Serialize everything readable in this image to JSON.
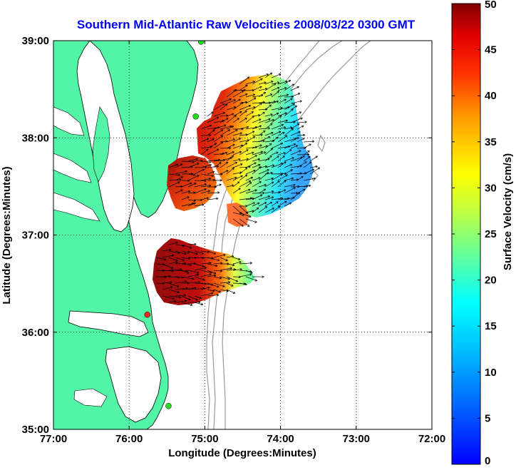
{
  "title": "Southern Mid-Atlantic Raw Velocities 2008/03/22 0300 GMT",
  "x_axis": {
    "label": "Longitude (Degrees:Minutes)",
    "ticks": [
      "77:00",
      "76:00",
      "75:00",
      "74:00",
      "73:00",
      "72:00"
    ]
  },
  "y_axis": {
    "label": "Latitude (Degrees:Minutes)",
    "ticks": [
      "39:00",
      "38:00",
      "37:00",
      "36:00",
      "35:00"
    ]
  },
  "colorbar": {
    "label": "Surface Velocity (cm/s)",
    "min": 0,
    "max": 50,
    "ticks": [
      "50",
      "45",
      "40",
      "35",
      "30",
      "25",
      "20",
      "15",
      "10",
      "5",
      "0"
    ]
  },
  "colors": {
    "land": "#52f5a6",
    "title": "#0000ff",
    "isobath": "#999999",
    "station_active": "#22dd22",
    "station_alert": "#ff2222"
  },
  "map": {
    "lon_range": [
      -77,
      -72
    ],
    "lat_range": [
      35,
      39
    ],
    "grid": "dotted",
    "stations": [
      {
        "lon": -75.05,
        "lat": 38.99,
        "status": "active"
      },
      {
        "lon": -75.12,
        "lat": 38.22,
        "status": "active"
      },
      {
        "lon": -75.76,
        "lat": 36.18,
        "status": "alert"
      },
      {
        "lon": -75.48,
        "lat": 35.24,
        "status": "active"
      }
    ],
    "velocity_patches": [
      {
        "name": "north",
        "lon_range": [
          -75.5,
          -73.5
        ],
        "lat_range": [
          37.15,
          38.6
        ]
      },
      {
        "name": "south",
        "lon_range": [
          -75.6,
          -74.3
        ],
        "lat_range": [
          36.3,
          36.95
        ]
      }
    ]
  }
}
